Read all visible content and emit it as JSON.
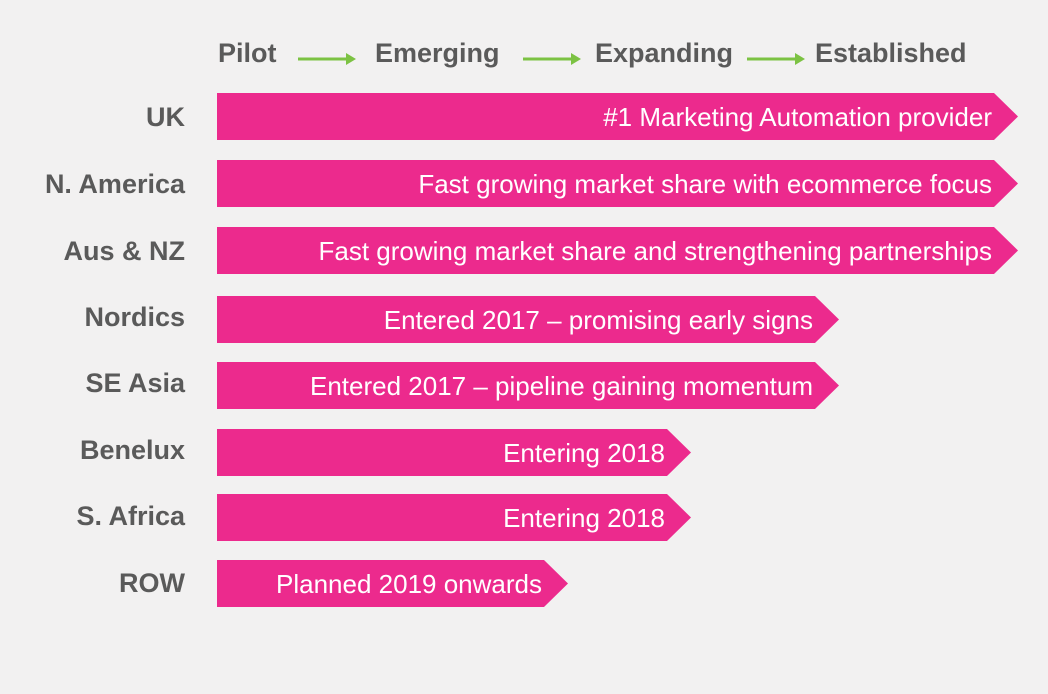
{
  "stages": [
    "Pilot",
    "Emerging",
    "Expanding",
    "Established"
  ],
  "colors": {
    "background": "#f2f1f1",
    "bar": "#ec2a8d",
    "arrow": "#7cc243",
    "label": "#5a5a5a",
    "bar_text": "#ffffff"
  },
  "rows": [
    {
      "region": "UK",
      "status": "#1 Marketing Automation provider",
      "stage": "Established"
    },
    {
      "region": "N. America",
      "status": "Fast growing market share with ecommerce focus",
      "stage": "Established"
    },
    {
      "region": "Aus & NZ",
      "status": "Fast growing market share and strengthening partnerships",
      "stage": "Established"
    },
    {
      "region": "Nordics",
      "status": "Entered 2017 – promising early signs",
      "stage": "Expanding"
    },
    {
      "region": "SE Asia",
      "status": "Entered 2017 – pipeline gaining momentum",
      "stage": "Expanding"
    },
    {
      "region": "Benelux",
      "status": "Entering 2018",
      "stage": "Emerging"
    },
    {
      "region": "S. Africa",
      "status": "Entering 2018",
      "stage": "Emerging"
    },
    {
      "region": "ROW",
      "status": "Planned 2019 onwards",
      "stage": "Pilot"
    }
  ]
}
